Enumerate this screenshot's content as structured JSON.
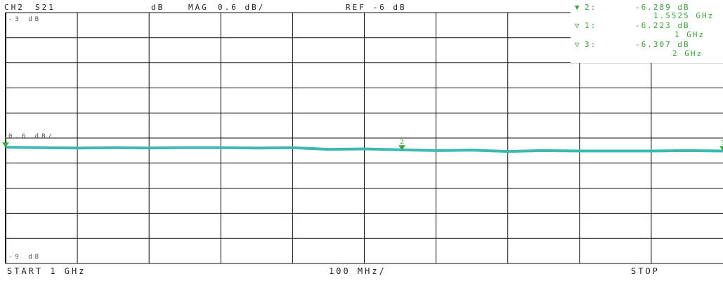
{
  "header": {
    "channel": "CH2",
    "parameter": "S21",
    "unit": "dB",
    "format": "MAG",
    "scale": "0.6 dB/",
    "reference": "REF -6 dB"
  },
  "markers": [
    {
      "symbol": "▼",
      "id": "2:",
      "value": "-6.289 dB",
      "freq": "1.5525 GHz"
    },
    {
      "symbol": "▽",
      "id": "1:",
      "value": "-6.223 dB",
      "freq": "1 GHz"
    },
    {
      "symbol": "▽",
      "id": "3:",
      "value": "-6.307 dB",
      "freq": "2 GHz"
    }
  ],
  "footer": {
    "start": "START 1 GHz",
    "span": "100 MHz/",
    "stop": "STOP"
  },
  "colors": {
    "trace": "#3fb8b3",
    "marker": "#3aa63a",
    "grid": "#111111",
    "ref_marker": "#d04040"
  },
  "chart_data": {
    "type": "line",
    "title": "",
    "xlabel": "",
    "ylabel": "dB",
    "xlim": [
      1.0,
      2.0
    ],
    "ylim": [
      -9,
      -3
    ],
    "grid": true,
    "tick_labels": {
      "top": "-3 dB",
      "ref": "0.6 dB/",
      "bottom": "-9 dB"
    },
    "series": [
      {
        "x": [
          1.0,
          1.05,
          1.1,
          1.15,
          1.2,
          1.25,
          1.3,
          1.35,
          1.4,
          1.45,
          1.5,
          1.55,
          1.6,
          1.65,
          1.7,
          1.75,
          1.8,
          1.85,
          1.9,
          1.95,
          2.0
        ],
        "values": [
          -6.22,
          -6.23,
          -6.24,
          -6.23,
          -6.24,
          -6.23,
          -6.23,
          -6.24,
          -6.23,
          -6.27,
          -6.26,
          -6.28,
          -6.3,
          -6.29,
          -6.32,
          -6.3,
          -6.31,
          -6.31,
          -6.31,
          -6.3,
          -6.31
        ]
      }
    ],
    "markers": [
      {
        "label": "1",
        "x": 1.0,
        "y": -6.223
      },
      {
        "label": "2",
        "x": 1.5525,
        "y": -6.289
      },
      {
        "label": "3",
        "x": 2.0,
        "y": -6.307
      }
    ]
  }
}
